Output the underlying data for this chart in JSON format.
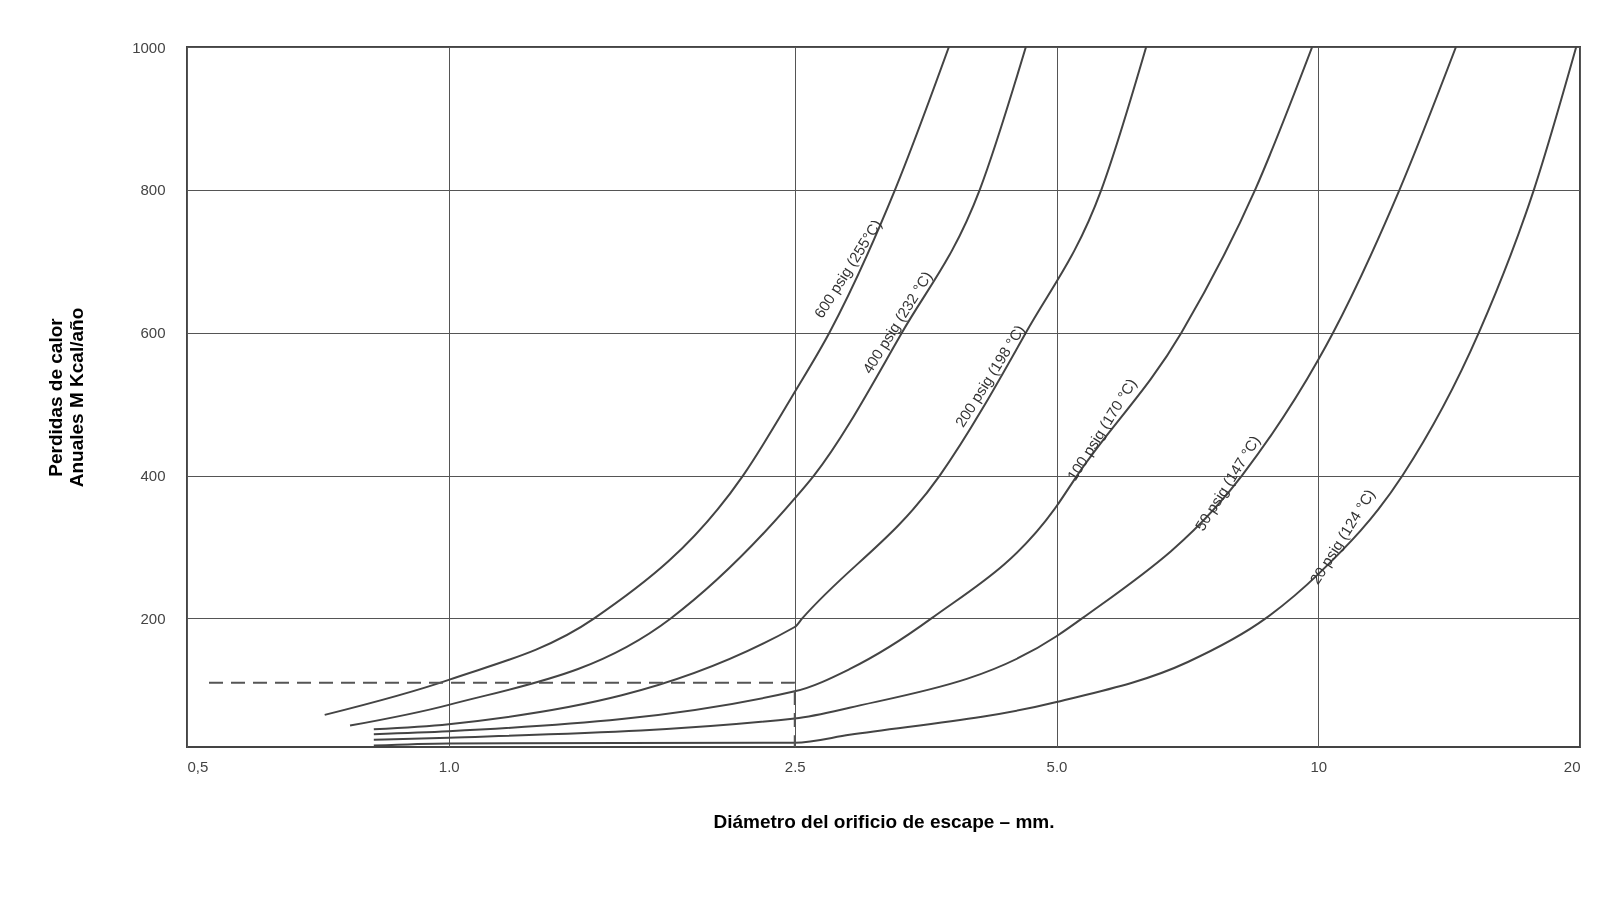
{
  "chart_data": {
    "type": "line",
    "xlabel": "Diámetro del orificio de escape – mm.",
    "ylabel": "Perdidas de calor\nAnuales M Kcal/año",
    "log": "x",
    "xlim": [
      0.5,
      20
    ],
    "ylim": [
      20,
      1000
    ],
    "xticks": [
      {
        "value": 0.5,
        "label": "0,5"
      },
      {
        "value": 1,
        "label": "1.0"
      },
      {
        "value": 2.5,
        "label": "2.5"
      },
      {
        "value": 5,
        "label": "5.0"
      },
      10,
      20
    ],
    "yticks": [
      200,
      400,
      600,
      800,
      {
        "value": 1000,
        "label": "1000"
      }
    ],
    "grid": true,
    "line_style": "solid",
    "series": [
      {
        "name": "600 psig (255°C)",
        "color": "#444444",
        "x": [
          0.72,
          1.0,
          1.47,
          2.18,
          2.5,
          2.74,
          3.26,
          3.76
        ],
        "values": [
          65,
          114,
          200,
          400,
          517,
          600,
          800,
          1000
        ]
      },
      {
        "name": "400 psig (232 °C)",
        "color": "#444444",
        "x": [
          0.77,
          1.0,
          1.8,
          2.5,
          2.63,
          3.32,
          4.08,
          4.61
        ],
        "values": [
          50,
          79,
          200,
          368,
          400,
          600,
          800,
          1000
        ]
      },
      {
        "name": "200 psig (198 °C)",
        "color": "#444444",
        "x": [
          0.82,
          1.0,
          2.5,
          2.55,
          3.67,
          4.61,
          5.63,
          6.34
        ],
        "values": [
          45,
          52,
          188,
          200,
          400,
          600,
          800,
          1000
        ]
      },
      {
        "name": "100 psig (170 °C)",
        "color": "#444444",
        "x": [
          0.82,
          1.0,
          2.5,
          2.89,
          3.59,
          5.0,
          5.28,
          6.96,
          8.46,
          9.84
        ],
        "values": [
          38,
          42,
          98,
          129,
          200,
          357,
          400,
          600,
          800,
          1000
        ]
      },
      {
        "name": "50 psig (147 °C)",
        "color": "#444444",
        "x": [
          0.82,
          1.0,
          2.5,
          2.89,
          5.0,
          5.35,
          8.17,
          10,
          10.4,
          12.4,
          14.4
        ],
        "values": [
          30,
          33,
          60,
          75,
          175,
          200,
          400,
          562,
          600,
          800,
          1000
        ]
      },
      {
        "name": "20 psig (124 °C)",
        "color": "#444444",
        "x": [
          0.82,
          1.0,
          2.5,
          2.89,
          5.0,
          7.08,
          8.7,
          10,
          12.5,
          15.3,
          17.7,
          19.8
        ],
        "values": [
          22,
          25,
          26,
          37,
          83,
          139,
          200,
          262,
          400,
          600,
          800,
          1000
        ]
      },
      {
        "color": "#555555",
        "line_style": "dashed",
        "x": [
          0.53,
          2.5,
          2.5
        ],
        "values": [
          110,
          110,
          20
        ]
      }
    ]
  }
}
